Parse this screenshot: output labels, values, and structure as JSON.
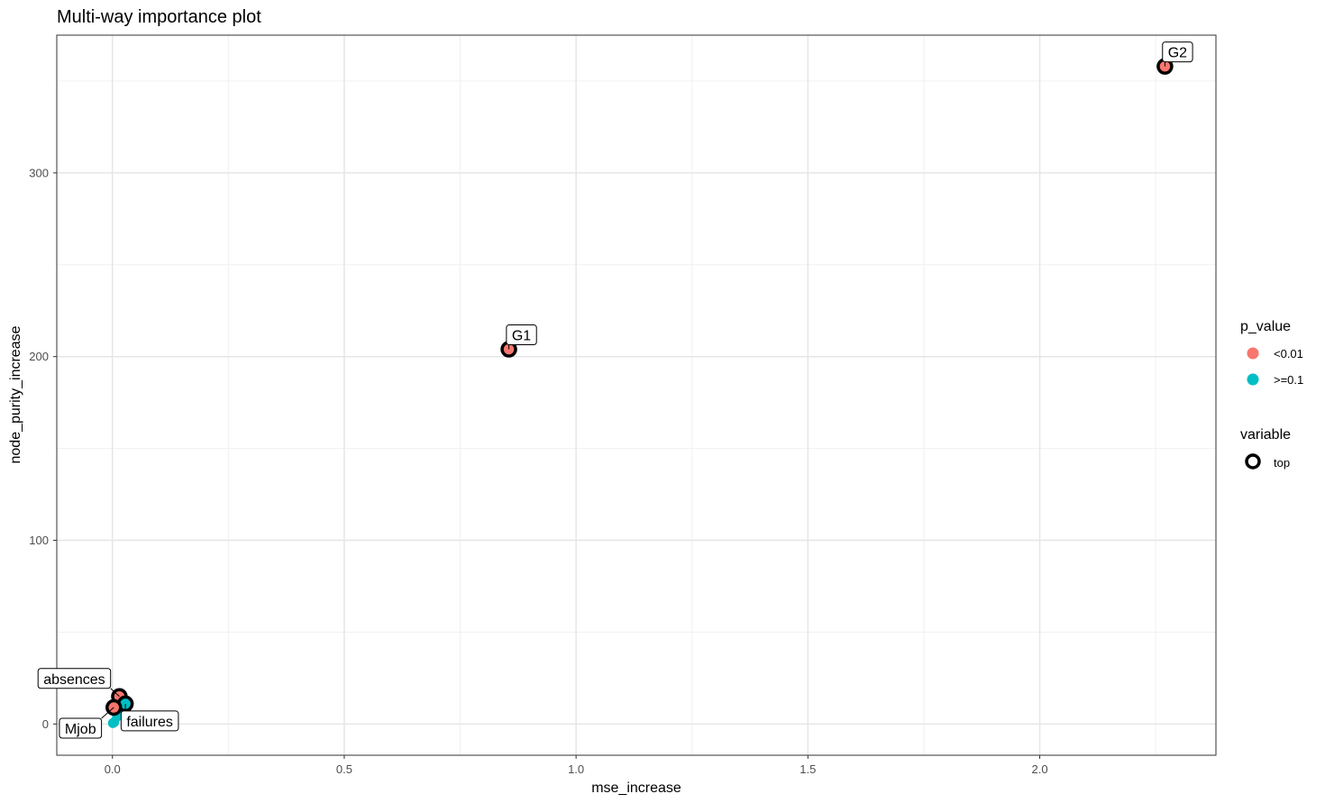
{
  "chart_data": {
    "type": "scatter",
    "title": "Multi-way importance plot",
    "xlabel": "mse_increase",
    "ylabel": "node_purity_increase",
    "xlim": [
      -0.12,
      2.38
    ],
    "ylim": [
      -17,
      375
    ],
    "x_ticks": [
      0.0,
      0.5,
      1.0,
      1.5,
      2.0
    ],
    "x_tick_labels": [
      "0.0",
      "0.5",
      "1.0",
      "1.5",
      "2.0"
    ],
    "y_ticks": [
      0,
      100,
      200,
      300
    ],
    "y_tick_labels": [
      "0",
      "100",
      "200",
      "300"
    ],
    "grid": true,
    "legend_position": "right",
    "legends": [
      {
        "title": "p_value",
        "entries": [
          {
            "label": "<0.01",
            "color": "#F8766D"
          },
          {
            "label": ">=0.1",
            "color": "#00BFC4"
          }
        ]
      },
      {
        "title": "variable",
        "entries": [
          {
            "label": "top",
            "shape": "ring"
          }
        ]
      }
    ],
    "points": [
      {
        "label": "G2",
        "x": 2.27,
        "y": 358,
        "p_value": "<0.01",
        "top": true
      },
      {
        "label": "G1",
        "x": 0.855,
        "y": 204,
        "p_value": "<0.01",
        "top": true
      },
      {
        "label": "absences",
        "x": 0.015,
        "y": 15,
        "p_value": "<0.01",
        "top": true
      },
      {
        "label": "failures",
        "x": 0.028,
        "y": 11,
        "p_value": ">=0.1",
        "top": true
      },
      {
        "label": "Mjob",
        "x": 0.003,
        "y": 9,
        "p_value": "<0.01",
        "top": true
      },
      {
        "label": "",
        "x": 0.018,
        "y": 6,
        "p_value": ">=0.1",
        "top": false
      },
      {
        "label": "",
        "x": 0.01,
        "y": 4,
        "p_value": ">=0.1",
        "top": false
      },
      {
        "label": "",
        "x": 0.004,
        "y": 1,
        "p_value": ">=0.1",
        "top": false
      },
      {
        "label": "",
        "x": 0.001,
        "y": 0.5,
        "p_value": ">=0.1",
        "top": false
      }
    ]
  }
}
